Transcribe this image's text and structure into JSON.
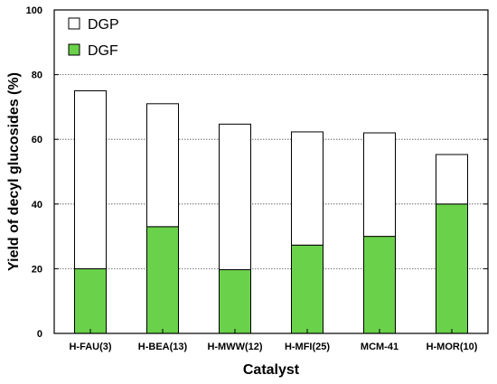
{
  "chart_data": {
    "type": "bar",
    "stacked": true,
    "title": "",
    "xlabel": "Catalyst",
    "ylabel": "Yield of decyl glucosides (%)",
    "ylim": [
      0,
      100
    ],
    "yticks": [
      0,
      20,
      40,
      60,
      80,
      100
    ],
    "grid": "horizontal dotted",
    "legend_position": "top-left",
    "categories": [
      "H-FAU(3)",
      "H-BEA(13)",
      "H-MWW(12)",
      "H-MFI(25)",
      "MCM-41",
      "H-MOR(10)"
    ],
    "series": [
      {
        "name": "DGF",
        "color": "#6ad14a",
        "values": [
          20.0,
          33.0,
          19.7,
          27.3,
          30.0,
          40.0
        ]
      },
      {
        "name": "DGP",
        "color": "#ffffff",
        "values": [
          55.0,
          38.0,
          45.0,
          35.0,
          32.0,
          15.3
        ]
      }
    ],
    "totals": [
      75.0,
      71.0,
      64.7,
      62.3,
      62.0,
      55.3
    ]
  }
}
